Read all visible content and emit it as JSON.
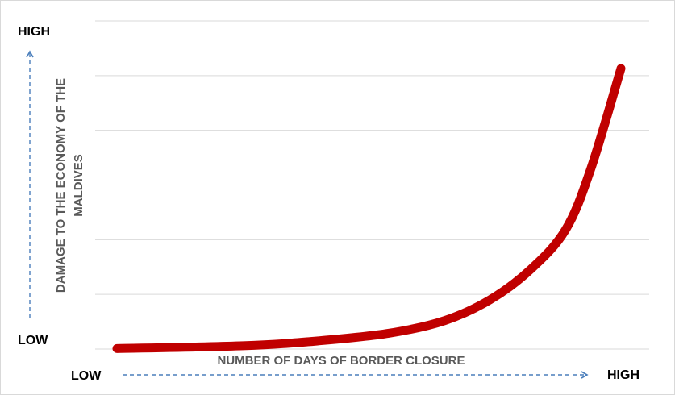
{
  "chart_data": {
    "type": "line",
    "y_high_label": "HIGH",
    "y_low_label": "LOW",
    "y_label": [
      "DAMAGE TO THE ECONOMY OF THE",
      "MALDIVES"
    ],
    "x_label": "NUMBER OF DAYS OF BORDER CLOSURE",
    "x_low_label": "LOW",
    "x_high_label": "HIGH",
    "x": [
      0,
      2.5,
      4,
      5.4,
      6.5,
      7.4,
      8.2,
      8.9,
      9.4,
      10
    ],
    "series": [
      {
        "color": "#c00000",
        "values": [
          0.01,
          0.06,
          0.15,
          0.29,
          0.52,
          0.9,
          1.45,
          2.18,
          3.29,
          5.13
        ]
      }
    ],
    "xlim": [
      0,
      10
    ],
    "ylim": [
      0,
      6
    ],
    "yticks": [
      0,
      1,
      2,
      3,
      4,
      5,
      6
    ],
    "grid": true
  }
}
